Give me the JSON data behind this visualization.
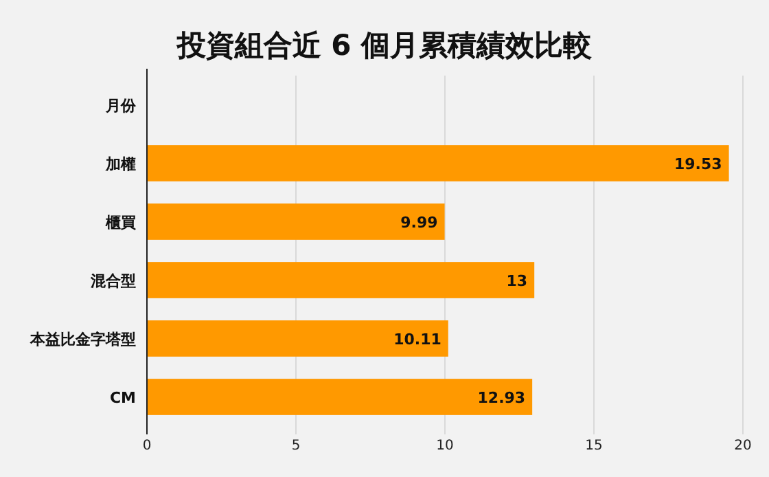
{
  "chart_data": {
    "type": "bar",
    "orientation": "horizontal",
    "title": "投資組合近 6 個月累積績效比較",
    "categories": [
      "月份",
      "加權",
      "櫃買",
      "混合型",
      "本益比金字塔型",
      "CM"
    ],
    "values": [
      null,
      19.53,
      9.99,
      13,
      10.11,
      12.93
    ],
    "color": "#ff9900",
    "xlim": [
      0,
      20
    ],
    "xticks": [
      0,
      5,
      10,
      15,
      20
    ],
    "grid": "x",
    "data_labels": true
  }
}
